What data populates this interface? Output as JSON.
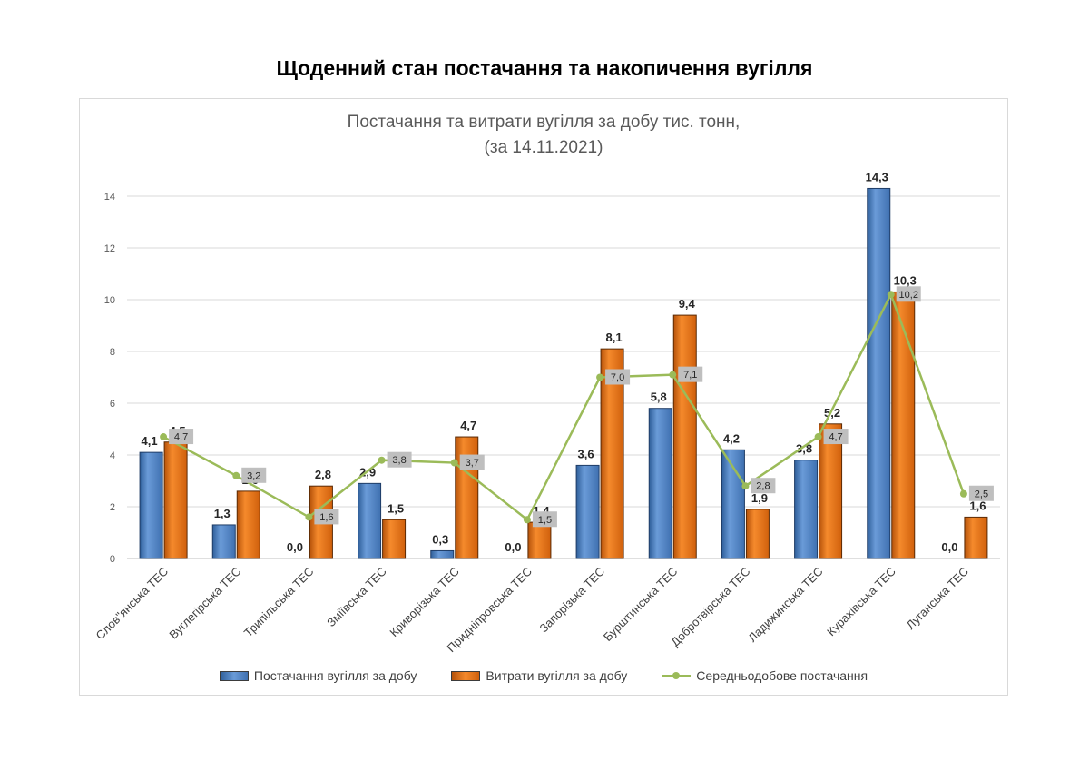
{
  "page": {
    "title": "Щоденний стан постачання та накопичення вугілля"
  },
  "chart_data": {
    "type": "bar",
    "title": "Постачання та витрати вугілля  за добу тис. тонн,",
    "subtitle": "(за 14.11.2021)",
    "xlabel": "",
    "ylabel": "",
    "ylim": [
      0,
      14
    ],
    "yticks": [
      0,
      2,
      4,
      6,
      8,
      10,
      12,
      14
    ],
    "grid": true,
    "legend_position": "bottom",
    "categories": [
      "Слов\"янська ТЕС",
      "Вуглегірська ТЕС",
      "Трипільська ТЕС",
      "Зміївська ТЕС",
      "Криворізька ТЕС",
      "Придніпровська ТЕС",
      "Запорізька ТЕС",
      "Бурштинська ТЕС",
      "Добротвірська ТЕС",
      "Ладижинська ТЕС",
      "Курахівська ТЕС",
      "Луганська ТЕС"
    ],
    "series": [
      {
        "name": "Постачання вугілля за добу",
        "kind": "bar",
        "color": "#4a7ebb",
        "values": [
          4.1,
          1.3,
          0.0,
          2.9,
          0.3,
          0.0,
          3.6,
          5.8,
          4.2,
          3.8,
          14.3,
          0.0
        ],
        "labels": [
          "4,1",
          "1,3",
          "0,0",
          "2,9",
          "0,3",
          "0,0",
          "3,6",
          "5,8",
          "4,2",
          "3,8",
          "14,3",
          "0,0"
        ]
      },
      {
        "name": "Витрати вугілля за добу",
        "kind": "bar",
        "color": "#e46c0a",
        "values": [
          4.5,
          2.6,
          2.8,
          1.5,
          4.7,
          1.4,
          8.1,
          9.4,
          1.9,
          5.2,
          10.3,
          1.6
        ],
        "labels": [
          "4,5",
          "2,6",
          "2,8",
          "1,5",
          "4,7",
          "1,4",
          "8,1",
          "9,4",
          "1,9",
          "5,2",
          "10,3",
          "1,6"
        ]
      },
      {
        "name": "Середньодобове постачання",
        "kind": "line",
        "color": "#9bbb59",
        "values": [
          4.7,
          3.2,
          1.6,
          3.8,
          3.7,
          1.5,
          7.0,
          7.1,
          2.8,
          4.7,
          10.2,
          2.5
        ],
        "labels": [
          "4,7",
          "3,2",
          "1,6",
          "3,8",
          "3,7",
          "1,5",
          "7,0",
          "7,1",
          "2,8",
          "4,7",
          "10,2",
          "2,5"
        ]
      }
    ]
  }
}
